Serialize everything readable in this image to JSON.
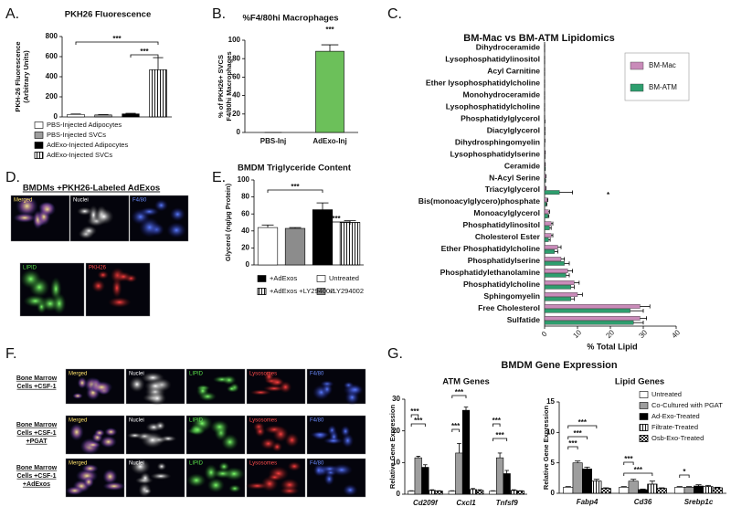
{
  "panel_labels": [
    "A.",
    "B.",
    "C.",
    "D.",
    "E.",
    "F.",
    "G."
  ],
  "images": {
    "D": {
      "title": "BMDMs +PKH26-Labeled AdExos",
      "channels": [
        "Merged",
        "Nuclei",
        "F4/80",
        "LIPID",
        "PKH26"
      ]
    },
    "F": {
      "rows": [
        {
          "label": [
            "Bone Marrow",
            "Cells +CSF-1"
          ],
          "channels": [
            "Merged",
            "Nuclei",
            "LIPID",
            "Lysosomes",
            "F4/80"
          ]
        },
        {
          "label": [
            "Bone Marrow",
            "Cells +CSF-1",
            "+PGAT"
          ],
          "channels": [
            "Merged",
            "Nuclei",
            "LIPID",
            "Lysosomes",
            "F4/80"
          ]
        },
        {
          "label": [
            "Bone Marrow",
            "Cells +CSF-1",
            "+AdExos"
          ],
          "channels": [
            "Merged",
            "Nuclei",
            "LIPID",
            "Lysosomes",
            "F4/80"
          ]
        }
      ]
    }
  },
  "chart_data": [
    {
      "type": "bar",
      "title": "PKH26 Fluorescence",
      "ylabel": [
        "PKH-26 Fluorescence",
        "(Arbitrary Units)"
      ],
      "ylim": [
        0,
        800
      ],
      "yticks": [
        0,
        200,
        400,
        600,
        800
      ],
      "series": [
        {
          "name": "PBS-Injected Adipocytes",
          "color": "#ffffff",
          "values": [
            25
          ],
          "errors": [
            4
          ]
        },
        {
          "name": "PBS-Injected SVCs",
          "color": "#9e9e9e",
          "values": [
            20
          ],
          "errors": [
            3
          ]
        },
        {
          "name": "AdExo-Injected Adipocytes",
          "color": "#000000",
          "values": [
            30
          ],
          "errors": [
            6
          ]
        },
        {
          "name": "AdExo-Injected SVCs",
          "color": "#ffffff",
          "pattern": "stripes",
          "values": [
            470
          ],
          "errors": [
            120
          ]
        }
      ],
      "annotations": [
        "***",
        "***"
      ]
    },
    {
      "type": "bar",
      "title": "%F4/80hi Macrophages",
      "ylabel": [
        "% of PKH26+ SVCS",
        "F4/80hi Macrophages"
      ],
      "ylim": [
        0,
        100
      ],
      "yticks": [
        0,
        20,
        40,
        60,
        80,
        100
      ],
      "categories": [
        "PBS-Inj",
        "AdExo-Inj"
      ],
      "values": [
        0,
        88
      ],
      "errors": [
        0,
        7
      ],
      "color": "#6cc05a",
      "annotations": [
        "***"
      ]
    },
    {
      "type": "hbar",
      "title": "BM-Mac vs BM-ATM Lipidomics",
      "xlabel": "% Total Lipid",
      "xlim": [
        0,
        40
      ],
      "xticks": [
        0,
        10,
        20,
        30,
        40
      ],
      "categories": [
        "Dihydroceramide",
        "Lysophosphatidylinositol",
        "Acyl Carnitine",
        "Ether lysophosphatidylcholine",
        "Monohydroceramide",
        "Lysophosphatidylcholine",
        "Phosphatidylglycerol",
        "Diacylglycerol",
        "Dihydrosphingomyelin",
        "Lysophosphatidylserine",
        "Ceramide",
        "N-Acyl Serine",
        "Triacylglycerol",
        "Bis(monoacylglycero)phosphate",
        "Monoacylglycerol",
        "Phosphatidylinositol",
        "Cholesterol Ester",
        "Ether Phosphatidylcholine",
        "Phosphatidylserine",
        "Phosphatidylethanolamine",
        "Phosphatidylcholine",
        "Sphingomyelin",
        "Free Cholesterol",
        "Sulfatide"
      ],
      "series": [
        {
          "name": "BM-Mac",
          "color": "#c98bb9",
          "values": [
            0,
            0,
            0,
            0,
            0,
            0,
            0,
            0.1,
            0.1,
            0.2,
            0.2,
            0.3,
            0.3,
            0.8,
            1.2,
            2,
            2,
            4,
            5,
            7,
            9,
            10,
            29,
            29
          ],
          "errors": [
            0,
            0,
            0,
            0,
            0,
            0,
            0,
            0,
            0,
            0,
            0,
            0.1,
            0.1,
            0.2,
            0.3,
            0.5,
            0.5,
            1,
            1,
            1.5,
            1.5,
            1.5,
            3,
            2
          ]
        },
        {
          "name": "BM-ATM",
          "color": "#2e9e6e",
          "values": [
            0,
            0,
            0,
            0,
            0,
            0,
            0.1,
            0.1,
            0,
            0.1,
            0.2,
            0.2,
            4.5,
            0.5,
            1,
            1.5,
            1.2,
            3,
            6,
            6.5,
            8,
            8,
            26,
            27
          ],
          "errors": [
            0,
            0,
            0,
            0,
            0,
            0,
            0,
            0,
            0,
            0,
            0,
            0.1,
            4,
            0.2,
            0.3,
            0.5,
            0.5,
            1,
            1.5,
            1,
            1,
            1,
            4,
            3
          ]
        }
      ],
      "annotations": [
        "*"
      ]
    },
    {
      "type": "bar",
      "title": "BMDM Triglyceride Content",
      "ylabel": [
        "Glycerol (ng/µg Protein)"
      ],
      "ylim": [
        0,
        100
      ],
      "yticks": [
        0,
        20,
        40,
        60,
        80,
        100
      ],
      "series": [
        {
          "name": "Untreated",
          "color": "#ffffff",
          "values": [
            44
          ],
          "errors": [
            3
          ]
        },
        {
          "name": "+LY294002",
          "color": "#8c8c8c",
          "values": [
            43
          ],
          "errors": [
            1
          ]
        },
        {
          "name": "+AdExos",
          "color": "#000000",
          "values": [
            65
          ],
          "errors": [
            8
          ]
        },
        {
          "name": "+AdExos +LY294002",
          "color": "#ffffff",
          "pattern": "stripes",
          "values": [
            50
          ],
          "errors": [
            2
          ]
        }
      ],
      "annotations": [
        "***",
        "***"
      ]
    },
    {
      "type": "bar",
      "suptitle": "BMDM Gene Expression",
      "title": "ATM Genes",
      "ylabel": [
        "Relative Gene Expression"
      ],
      "ylim": [
        0,
        30
      ],
      "yticks": [
        0,
        10,
        20,
        30
      ],
      "categories": [
        "Cd209f",
        "Cxcl1",
        "Tnfsf9"
      ],
      "series": [
        {
          "color": "#ffffff",
          "values": [
            1,
            1,
            1
          ],
          "errors": [
            0.1,
            0.1,
            0.1
          ]
        },
        {
          "color": "#9e9e9e",
          "values": [
            11.5,
            13,
            11.5
          ],
          "errors": [
            0.5,
            3,
            1.5
          ]
        },
        {
          "color": "#000000",
          "values": [
            8.5,
            26.5,
            6.5
          ],
          "errors": [
            0.8,
            1,
            1
          ]
        },
        {
          "color": "#ffffff",
          "pattern": "stripes",
          "values": [
            1.2,
            1.5,
            1.2
          ],
          "errors": [
            0.2,
            0.3,
            0.2
          ]
        },
        {
          "color": "#ffffff",
          "pattern": "checks",
          "values": [
            1,
            1.2,
            1
          ],
          "errors": [
            0.1,
            0.2,
            0.1
          ]
        }
      ],
      "annotations": [
        "***",
        "***",
        "***",
        "***",
        "***",
        "***"
      ]
    },
    {
      "type": "bar",
      "title": "Lipid Genes",
      "ylabel": [
        "Relative Gene Expression"
      ],
      "ylim": [
        0,
        15
      ],
      "yticks": [
        0,
        5,
        10,
        15
      ],
      "categories": [
        "Fabp4",
        "Cd36",
        "Srebp1c"
      ],
      "series": [
        {
          "name": "Untreated",
          "color": "#ffffff",
          "values": [
            1,
            1,
            1
          ],
          "errors": [
            0.1,
            0.1,
            0.1
          ]
        },
        {
          "name": "Co-Cultured with PGAT",
          "color": "#9e9e9e",
          "values": [
            5,
            2,
            1
          ],
          "errors": [
            0.3,
            0.3,
            0.1
          ]
        },
        {
          "name": "Ad-Exo-Treated",
          "color": "#000000",
          "values": [
            4,
            0.6,
            1.2
          ],
          "errors": [
            0.3,
            0.1,
            0.2
          ]
        },
        {
          "name": "Filtrate-Treated",
          "color": "#ffffff",
          "pattern": "stripes",
          "values": [
            2,
            1.5,
            1.1
          ],
          "errors": [
            0.3,
            0.5,
            0.2
          ]
        },
        {
          "name": "Osb-Exo-Treated",
          "color": "#ffffff",
          "pattern": "checks",
          "values": [
            0.8,
            0.8,
            0.9
          ],
          "errors": [
            0.1,
            0.1,
            0.1
          ]
        }
      ],
      "annotations": [
        "***",
        "***",
        "***",
        "***",
        "***",
        "*"
      ]
    }
  ]
}
